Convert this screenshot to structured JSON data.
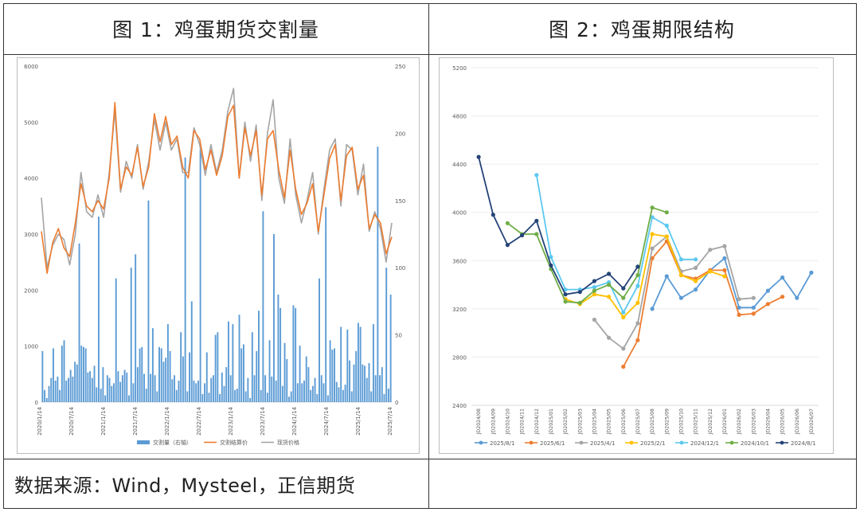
{
  "panels": {
    "left_title": "图 1：鸡蛋期货交割量",
    "right_title": "图 2：鸡蛋期限结构"
  },
  "source_text": "数据来源：Wind，Mysteel，正信期货",
  "chart_data": [
    {
      "type": "line",
      "title": "",
      "x_tick_labels": [
        "2020/1/14",
        "2020/7/14",
        "2021/1/14",
        "2021/7/14",
        "2022/1/14",
        "2022/7/14",
        "2023/1/14",
        "2023/7/14",
        "2024/1/14",
        "2024/7/14",
        "2025/1/14",
        "2025/7/14"
      ],
      "ylim_left": [
        0,
        6000
      ],
      "yticks_left": [
        "0",
        "1000",
        "2000",
        "3000",
        "4000",
        "5000",
        "6000"
      ],
      "ylim_right": [
        0,
        250
      ],
      "yticks_right": [
        "0",
        "50",
        "100",
        "150",
        "200",
        "250"
      ],
      "legend": [
        "交割量（右轴）",
        "交割结算价",
        "现货价格"
      ],
      "legend_position": "bottom",
      "colors": {
        "volume": "#5b9bd5",
        "settle": "#ed7d31",
        "spot": "#a5a5a5"
      },
      "series": [
        {
          "name": "交割结算价",
          "axis": "left",
          "values": [
            3050,
            2300,
            2850,
            3100,
            2750,
            2600,
            3200,
            3900,
            3500,
            3400,
            3600,
            3450,
            4000,
            5350,
            3800,
            4200,
            4050,
            4550,
            3850,
            4200,
            5150,
            4650,
            5100,
            4600,
            4750,
            4200,
            4000,
            4850,
            4700,
            4150,
            4500,
            4050,
            4400,
            5100,
            5300,
            4000,
            4900,
            4400,
            4850,
            3700,
            4700,
            4850,
            4150,
            3650,
            4500,
            3800,
            3350,
            3550,
            3900,
            3050,
            3700,
            4350,
            4600,
            3600,
            4400,
            4550,
            3800,
            4050,
            3100,
            3350,
            3200,
            2650,
            2950
          ]
        },
        {
          "name": "现货价格",
          "axis": "left",
          "values": [
            3650,
            2400,
            2800,
            3000,
            2900,
            2450,
            3000,
            4100,
            3400,
            3300,
            3700,
            3300,
            4100,
            5200,
            3750,
            4300,
            4000,
            4600,
            3800,
            4300,
            5050,
            4500,
            5000,
            4500,
            4700,
            4100,
            4100,
            4900,
            4600,
            4050,
            4600,
            4100,
            4500,
            5200,
            5600,
            4000,
            5000,
            4300,
            4950,
            3600,
            4800,
            5400,
            4000,
            3550,
            4700,
            3700,
            3200,
            3600,
            4100,
            3000,
            3800,
            4500,
            4700,
            3500,
            4600,
            4500,
            3700,
            4250,
            3050,
            3400,
            3100,
            2500,
            3200
          ]
        },
        {
          "name": "交割量（右轴）",
          "axis": "right",
          "type": "bar",
          "values": [
            38,
            9,
            3,
            12,
            18,
            40,
            16,
            19,
            9,
            42,
            46,
            16,
            18,
            24,
            19,
            30,
            28,
            118,
            42,
            41,
            40,
            22,
            23,
            18,
            27,
            11,
            138,
            10,
            26,
            5,
            20,
            18,
            12,
            14,
            92,
            23,
            15,
            20,
            24,
            22,
            5,
            100,
            14,
            110,
            26,
            40,
            41,
            21,
            10,
            150,
            21,
            55,
            20,
            8,
            41,
            40,
            30,
            33,
            58,
            38,
            17,
            20,
            9,
            16,
            52,
            34,
            182,
            8,
            37,
            75,
            16,
            14,
            16,
            188,
            6,
            14,
            37,
            7,
            18,
            20,
            50,
            52,
            6,
            22,
            12,
            26,
            60,
            20,
            58,
            9,
            10,
            65,
            40,
            43,
            8,
            18,
            3,
            52,
            20,
            38,
            68,
            9,
            142,
            20,
            7,
            46,
            19,
            125,
            16,
            80,
            70,
            12,
            44,
            32,
            4,
            8,
            72,
            70,
            14,
            42,
            14,
            16,
            34,
            26,
            9,
            12,
            18,
            6,
            92,
            20,
            14,
            145,
            5,
            46,
            39,
            40,
            15,
            11,
            56,
            9,
            13,
            54,
            31,
            8,
            28,
            38,
            59,
            56,
            28,
            27,
            18,
            29,
            8,
            58,
            20,
            190,
            20,
            26,
            6,
            100,
            10,
            80
          ]
        }
      ]
    },
    {
      "type": "line",
      "title": "",
      "categories": [
        "JD2024/08",
        "JD2024/09",
        "JD2024/10",
        "JD2024/11",
        "JD2024/12",
        "JD2025/01",
        "JD2025/02",
        "JD2025/03",
        "JD2025/04",
        "JD2025/05",
        "JD2025/06",
        "JD2025/07",
        "JD2025/08",
        "JD2025/09",
        "JD2025/10",
        "JD2025/11",
        "JD2025/12",
        "JD2026/01",
        "JD2026/02",
        "JD2026/03",
        "JD2026/04",
        "JD2026/05",
        "JD2026/06",
        "JD2026/07"
      ],
      "ylim": [
        2400,
        5200
      ],
      "yticks": [
        "2400",
        "2800",
        "3200",
        "3600",
        "4000",
        "4400",
        "4800",
        "5200"
      ],
      "legend_position": "bottom",
      "series": [
        {
          "name": "2025/8/1",
          "color": "#5b9bd5",
          "values": [
            null,
            null,
            null,
            null,
            null,
            null,
            null,
            null,
            null,
            null,
            null,
            null,
            3200,
            3470,
            3290,
            3360,
            3520,
            3620,
            3210,
            3210,
            3350,
            3460,
            3290,
            3500
          ]
        },
        {
          "name": "2025/6/1",
          "color": "#ed7d31",
          "values": [
            null,
            null,
            null,
            null,
            null,
            null,
            null,
            null,
            null,
            null,
            2720,
            2940,
            3620,
            3760,
            3480,
            3450,
            3520,
            3520,
            3150,
            3160,
            3240,
            3300,
            null,
            null
          ]
        },
        {
          "name": "2025/4/1",
          "color": "#a5a5a5",
          "values": [
            null,
            null,
            null,
            null,
            null,
            null,
            null,
            null,
            3110,
            2960,
            2870,
            3080,
            3700,
            3800,
            3510,
            3540,
            3690,
            3720,
            3280,
            3290,
            null,
            null,
            null,
            null
          ]
        },
        {
          "name": "2025/2/1",
          "color": "#ffc000",
          "values": [
            null,
            null,
            null,
            null,
            null,
            null,
            3280,
            3240,
            3320,
            3300,
            3130,
            3250,
            3820,
            3800,
            3480,
            3430,
            3510,
            3470,
            null,
            null,
            null,
            null,
            null,
            null
          ]
        },
        {
          "name": "2024/12/1",
          "color": "#5bc8f0",
          "values": [
            null,
            null,
            null,
            null,
            4310,
            3630,
            3360,
            3360,
            3380,
            3420,
            3170,
            3390,
            3960,
            3890,
            3610,
            3610,
            null,
            null,
            null,
            null,
            null,
            null,
            null,
            null
          ]
        },
        {
          "name": "2024/10/1",
          "color": "#70ad47",
          "values": [
            null,
            null,
            3910,
            3820,
            3820,
            3530,
            3260,
            3250,
            3350,
            3400,
            3290,
            3480,
            4040,
            4000,
            null,
            null,
            null,
            null,
            null,
            null,
            null,
            null,
            null,
            null
          ]
        },
        {
          "name": "2024/8/1",
          "color": "#264478",
          "values": [
            4460,
            3980,
            3730,
            3810,
            3930,
            3560,
            3320,
            3340,
            3430,
            3490,
            3370,
            3550,
            null,
            null,
            null,
            null,
            null,
            null,
            null,
            null,
            null,
            null,
            null,
            null
          ]
        }
      ]
    }
  ]
}
